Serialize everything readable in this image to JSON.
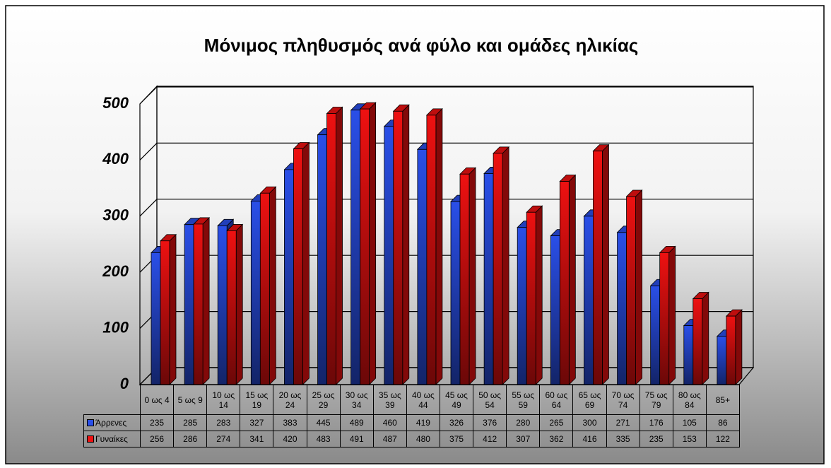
{
  "chart_data": {
    "type": "bar3d",
    "title": "Μόνιμος πληθυσμός ανά φύλο και ομάδες ηλικίας",
    "categories": [
      "0 ως 4",
      "5 ως 9",
      "10 ως 14",
      "15 ως 19",
      "20 ως 24",
      "25 ως 29",
      "30 ως 34",
      "35 ως 39",
      "40 ως 44",
      "45 ως 49",
      "50 ως 54",
      "55 ως 59",
      "60 ως 64",
      "65 ως 69",
      "70 ως 74",
      "75 ως 79",
      "80 ως 84",
      "85+"
    ],
    "series": [
      {
        "name": "Άρρενες",
        "color": "#2a4fe8",
        "values": [
          235,
          285,
          283,
          327,
          383,
          445,
          489,
          460,
          419,
          326,
          376,
          280,
          265,
          300,
          271,
          176,
          105,
          86
        ]
      },
      {
        "name": "Γυναίκες",
        "color": "#ee1111",
        "values": [
          256,
          286,
          274,
          341,
          420,
          483,
          491,
          487,
          480,
          375,
          412,
          307,
          362,
          416,
          335,
          235,
          153,
          122
        ]
      }
    ],
    "ylim": [
      0,
      500
    ],
    "yticks": [
      0,
      100,
      200,
      300,
      400,
      500
    ],
    "grid": true
  }
}
